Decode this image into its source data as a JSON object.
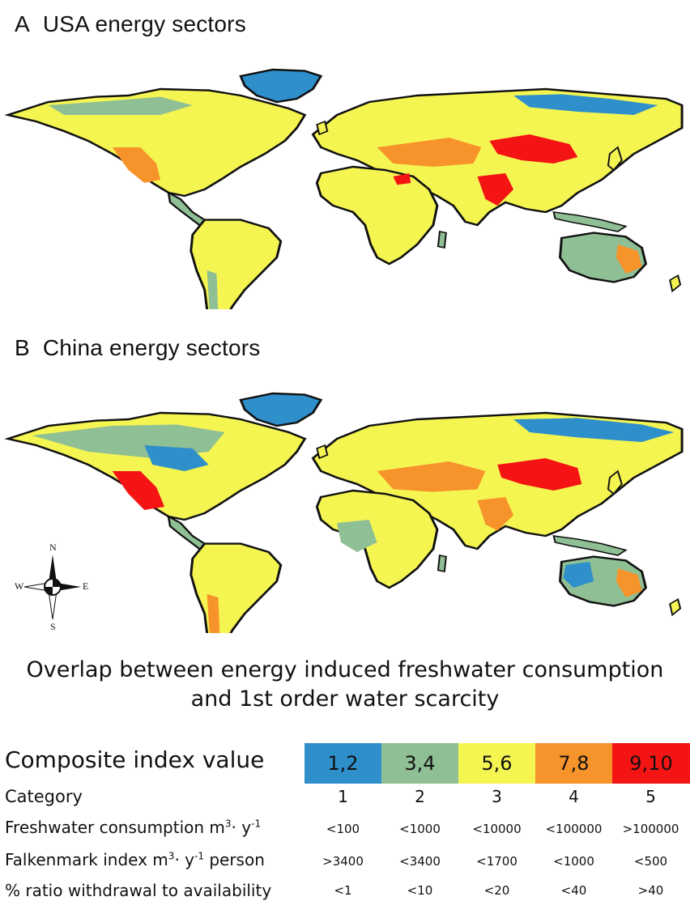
{
  "panels": [
    {
      "id": "A",
      "letter": "A",
      "title": "USA energy sectors"
    },
    {
      "id": "B",
      "letter": "B",
      "title": "China energy sectors"
    }
  ],
  "compass": {
    "n": "N",
    "s": "S",
    "e": "E",
    "w": "W"
  },
  "overlap_title": {
    "line1": "Overlap between energy induced freshwater consumption",
    "line2": "and 1st order water scarcity"
  },
  "legend": {
    "composite_label": "Composite index value",
    "classes": [
      {
        "value": "1,2",
        "color": "#2e8fcb",
        "category": "1",
        "consumption": "<100",
        "falkenmark": ">3400",
        "ratio": "<1"
      },
      {
        "value": "3,4",
        "color": "#8fbf94",
        "category": "2",
        "consumption": "<1000",
        "falkenmark": "<3400",
        "ratio": "<10"
      },
      {
        "value": "5,6",
        "color": "#f5f552",
        "category": "3",
        "consumption": "<10000",
        "falkenmark": "<1700",
        "ratio": "<20"
      },
      {
        "value": "7,8",
        "color": "#f7932b",
        "category": "4",
        "consumption": "<100000",
        "falkenmark": "<1000",
        "ratio": "<40"
      },
      {
        "value": "9,10",
        "color": "#f51414",
        "category": "5",
        "consumption": ">100000",
        "falkenmark": "<500",
        "ratio": ">40"
      }
    ],
    "row_labels": {
      "category": "Category",
      "consumption_base": "Freshwater consumption m",
      "consumption_sup1": "3",
      "consumption_mid": "· y",
      "consumption_sup2": "-1",
      "falkenmark_base": "Falkenmark index m",
      "falkenmark_sup1": "3",
      "falkenmark_mid": "· y",
      "falkenmark_sup2": "-1",
      "falkenmark_tail": " person",
      "ratio": "% ratio withdrawal to availability"
    }
  }
}
